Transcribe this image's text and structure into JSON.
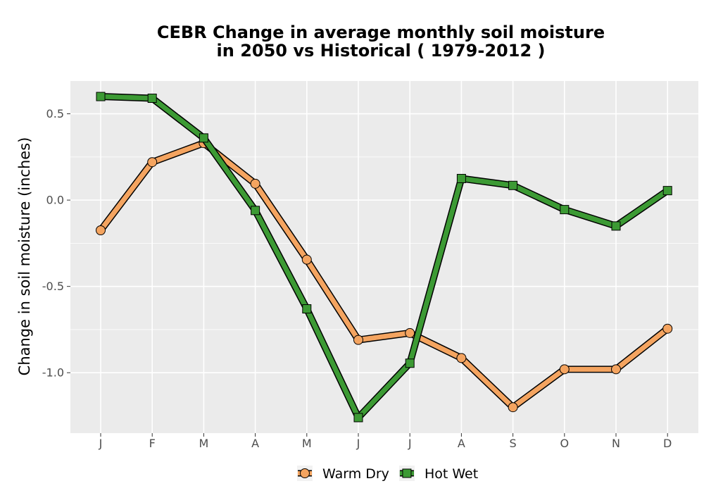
{
  "chart_data": {
    "type": "line",
    "title_line1": "CEBR  Change in average monthly soil moisture",
    "title_line2": "in 2050 vs Historical ( 1979-2012 )",
    "xlabel": "",
    "ylabel": "Change in soil moisture (inches)",
    "categories": [
      "J",
      "F",
      "M",
      "A",
      "M",
      "J",
      "J",
      "A",
      "S",
      "O",
      "N",
      "D"
    ],
    "ylim": [
      -1.35,
      0.69
    ],
    "yticks": [
      0.5,
      0.0,
      -0.5,
      -1.0
    ],
    "ytick_labels": [
      "0.5",
      "0.0",
      "-0.5",
      "-1.0"
    ],
    "grid": true,
    "legend_position": "bottom",
    "series": [
      {
        "name": "Warm Dry",
        "color": "#f4a460",
        "marker": "circle",
        "values": [
          -0.175,
          0.22,
          0.33,
          0.095,
          -0.345,
          -0.81,
          -0.77,
          -0.915,
          -1.2,
          -0.98,
          -0.98,
          -0.745
        ]
      },
      {
        "name": "Hot Wet",
        "color": "#3c9a34",
        "marker": "square",
        "values": [
          0.6,
          0.59,
          0.36,
          -0.06,
          -0.63,
          -1.26,
          -0.945,
          0.125,
          0.085,
          -0.055,
          -0.15,
          0.055
        ]
      }
    ]
  }
}
